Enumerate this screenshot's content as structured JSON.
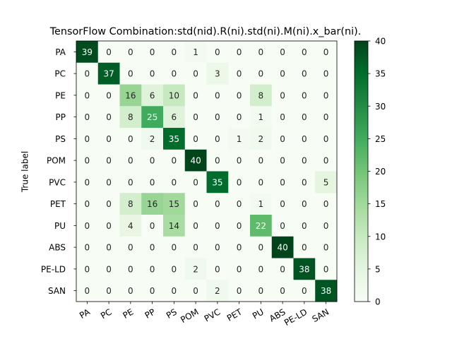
{
  "chart_data": {
    "type": "heatmap",
    "title": "TensorFlow Combination:std(nid).R(ni).std(ni).M(ni).x_bar(ni).",
    "xlabel": "",
    "ylabel": "True label",
    "row_labels": [
      "PA",
      "PC",
      "PE",
      "PP",
      "PS",
      "POM",
      "PVC",
      "PET",
      "PU",
      "ABS",
      "PE-LD",
      "SAN"
    ],
    "col_labels": [
      "PA",
      "PC",
      "PE",
      "PP",
      "PS",
      "POM",
      "PVC",
      "PET",
      "PU",
      "ABS",
      "PE-LD",
      "SAN"
    ],
    "values": [
      [
        39,
        0,
        0,
        0,
        0,
        1,
        0,
        0,
        0,
        0,
        0,
        0
      ],
      [
        0,
        37,
        0,
        0,
        0,
        0,
        3,
        0,
        0,
        0,
        0,
        0
      ],
      [
        0,
        0,
        16,
        6,
        10,
        0,
        0,
        0,
        8,
        0,
        0,
        0
      ],
      [
        0,
        0,
        8,
        25,
        6,
        0,
        0,
        0,
        1,
        0,
        0,
        0
      ],
      [
        0,
        0,
        0,
        2,
        35,
        0,
        0,
        1,
        2,
        0,
        0,
        0
      ],
      [
        0,
        0,
        0,
        0,
        0,
        40,
        0,
        0,
        0,
        0,
        0,
        0
      ],
      [
        0,
        0,
        0,
        0,
        0,
        0,
        35,
        0,
        0,
        0,
        0,
        5
      ],
      [
        0,
        0,
        8,
        16,
        15,
        0,
        0,
        0,
        1,
        0,
        0,
        0
      ],
      [
        0,
        0,
        4,
        0,
        14,
        0,
        0,
        0,
        22,
        0,
        0,
        0
      ],
      [
        0,
        0,
        0,
        0,
        0,
        0,
        0,
        0,
        0,
        40,
        0,
        0
      ],
      [
        0,
        0,
        0,
        0,
        0,
        2,
        0,
        0,
        0,
        0,
        38,
        0
      ],
      [
        0,
        0,
        0,
        0,
        0,
        0,
        2,
        0,
        0,
        0,
        0,
        38
      ]
    ],
    "colorbar": {
      "min": 0,
      "max": 40,
      "ticks": [
        0,
        5,
        10,
        15,
        20,
        25,
        30,
        35,
        40
      ],
      "colormap": "Greens"
    },
    "grid": false
  }
}
